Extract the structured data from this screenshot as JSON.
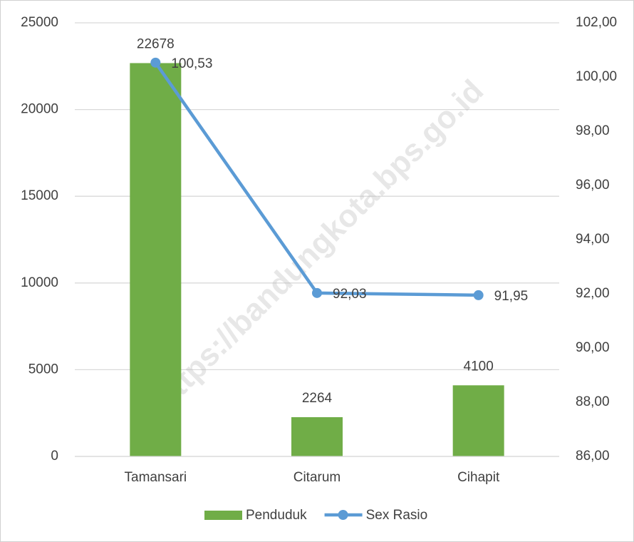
{
  "chart_data": {
    "type": "bar",
    "categories": [
      "Tamansari",
      "Citarum",
      "Cihapit"
    ],
    "series": [
      {
        "name": "Penduduk",
        "type": "bar",
        "color": "#70ad47",
        "values": [
          22678,
          2264,
          4100
        ]
      },
      {
        "name": "Sex Rasio",
        "type": "line",
        "axis": "y2",
        "color": "#5b9bd5",
        "values": [
          100.53,
          92.03,
          91.95
        ],
        "value_labels": [
          "100,53",
          "92,03",
          "91,95"
        ]
      }
    ],
    "ylim": [
      0,
      25000
    ],
    "yticks": [
      0,
      5000,
      10000,
      15000,
      20000,
      25000
    ],
    "y2lim": [
      86,
      102
    ],
    "y2ticks": [
      {
        "value": 86,
        "label": "86,00"
      },
      {
        "value": 88,
        "label": "88,00"
      },
      {
        "value": 90,
        "label": "90,00"
      },
      {
        "value": 92,
        "label": "92,00"
      },
      {
        "value": 94,
        "label": "94,00"
      },
      {
        "value": 96,
        "label": "96,00"
      },
      {
        "value": 98,
        "label": "98,00"
      },
      {
        "value": 100,
        "label": "100,00"
      },
      {
        "value": 102,
        "label": "102,00"
      }
    ],
    "grid": true,
    "legend": "bottom",
    "watermark": "https://bandungkota.bps.go.id"
  }
}
